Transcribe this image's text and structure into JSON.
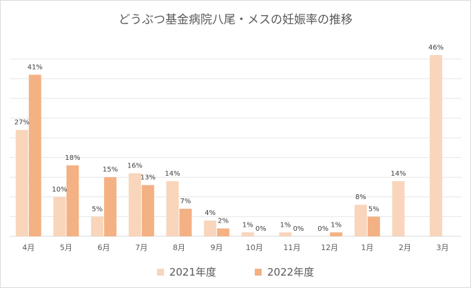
{
  "chart_data": {
    "type": "bar",
    "title": "どうぶつ基金病院八尾・メスの妊娠率の推移",
    "categories": [
      "4月",
      "5月",
      "6月",
      "7月",
      "8月",
      "9月",
      "10月",
      "11月",
      "12月",
      "1月",
      "2月",
      "3月"
    ],
    "series": [
      {
        "name": "2021年度",
        "color": "#f8d5bb",
        "values": [
          27,
          10,
          5,
          16,
          14,
          4,
          1,
          1,
          0,
          8,
          14,
          46
        ],
        "labels": [
          "27%",
          "10%",
          "5%",
          "16%",
          "14%",
          "4%",
          "1%",
          "1%",
          "0%",
          "8%",
          "14%",
          "46%"
        ]
      },
      {
        "name": "2022年度",
        "color": "#f4b183",
        "values": [
          41,
          18,
          15,
          13,
          7,
          2,
          0,
          0,
          1,
          5,
          null,
          null
        ],
        "labels": [
          "41%",
          "18%",
          "15%",
          "13%",
          "7%",
          "2%",
          "0%",
          "0%",
          "1%",
          "5%",
          null,
          null
        ]
      }
    ],
    "ylim": [
      0,
      50
    ],
    "gridlines": [
      0,
      5,
      10,
      15,
      20,
      25,
      30,
      35,
      40,
      45
    ],
    "legend_position": "bottom"
  }
}
